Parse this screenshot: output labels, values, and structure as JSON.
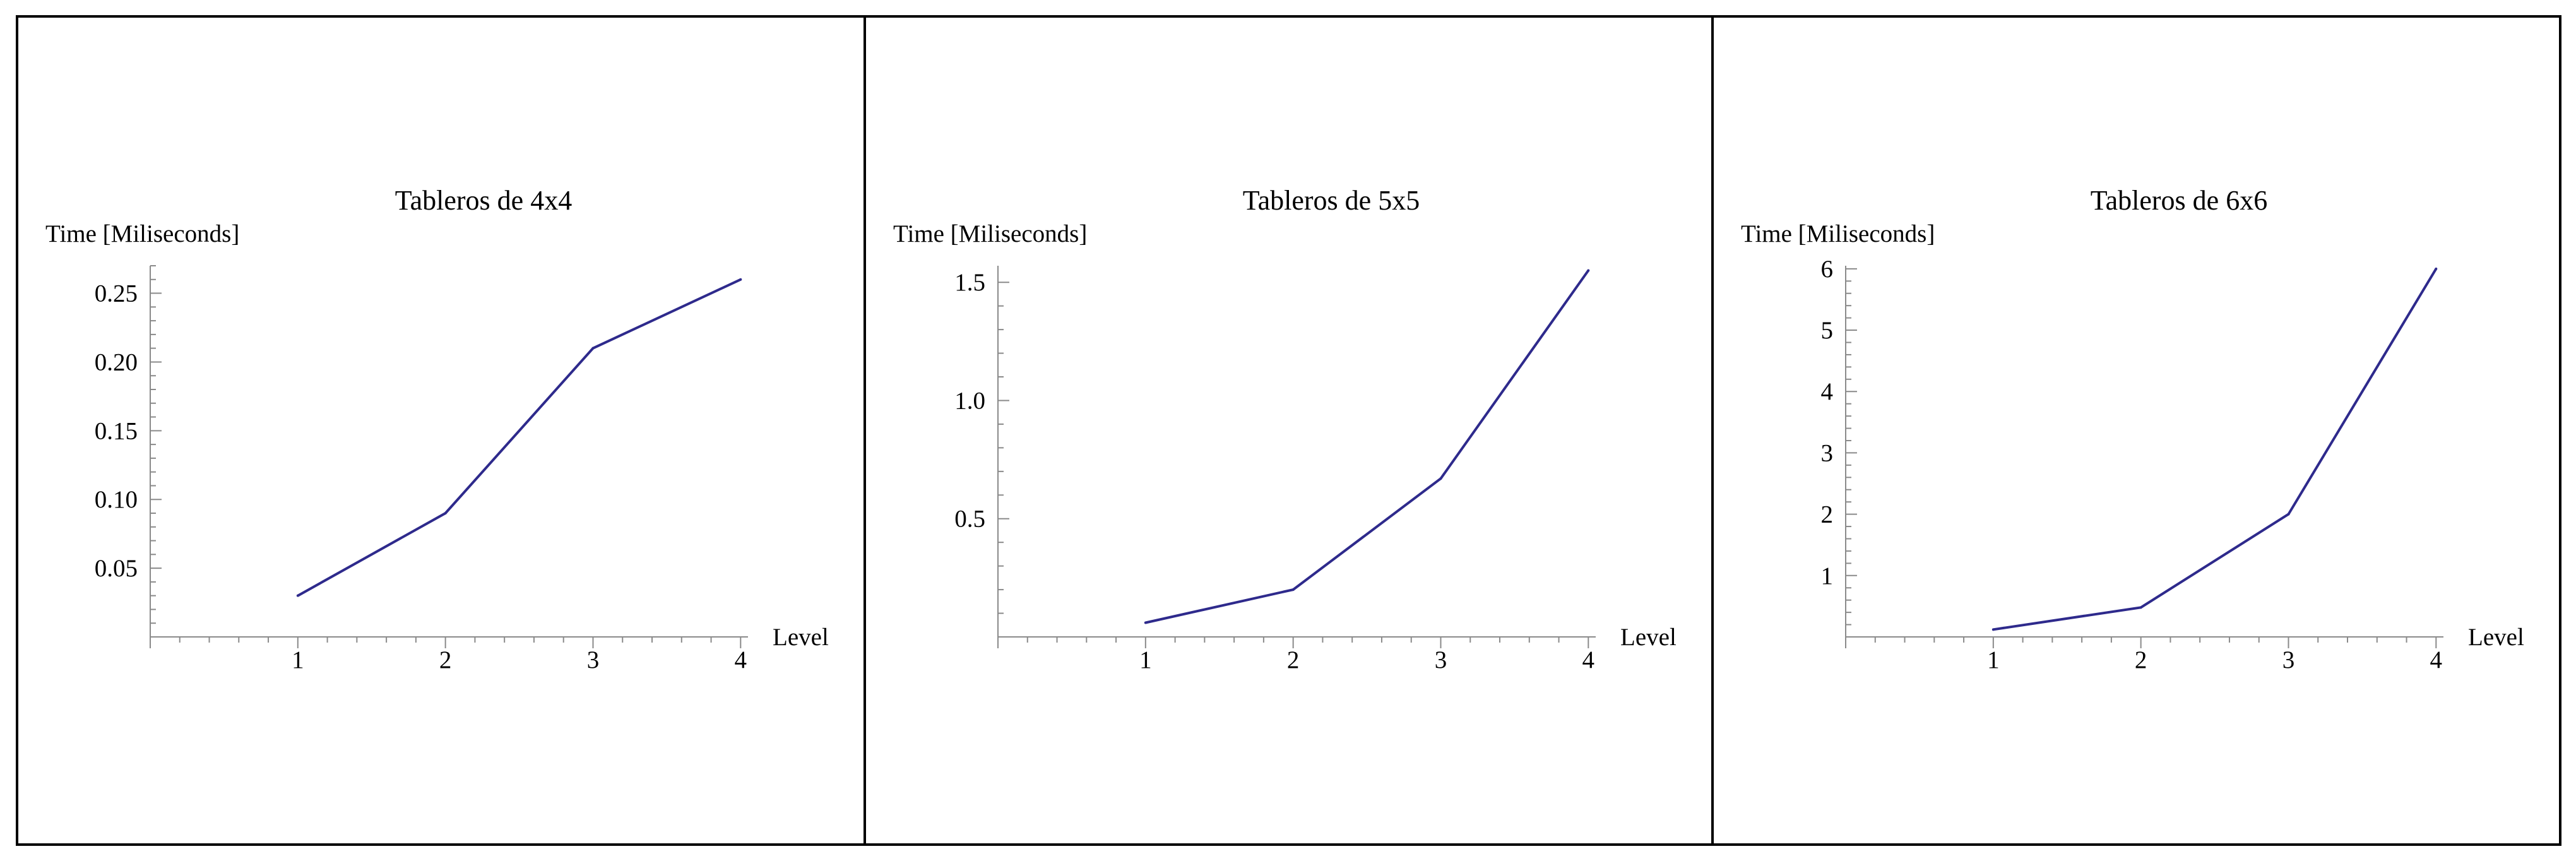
{
  "chart_data": [
    {
      "type": "line",
      "title": "Tableros de 4x4",
      "xlabel": "Level",
      "ylabel": "Time [Miliseconds]",
      "x": [
        1,
        2,
        3,
        4
      ],
      "series": [
        {
          "values": [
            0.03,
            0.09,
            0.21,
            0.26
          ]
        }
      ],
      "xlim": [
        0,
        4.05
      ],
      "ylim": [
        0,
        0.27
      ],
      "xticks": [
        1,
        2,
        3,
        4
      ],
      "xtick_labels": [
        "1",
        "2",
        "3",
        "4"
      ],
      "yticks": [
        0.05,
        0.1,
        0.15,
        0.2,
        0.25
      ],
      "ytick_labels": [
        "0.05",
        "0.10",
        "0.15",
        "0.20",
        "0.25"
      ],
      "x_minor_step": 0.2,
      "y_minor_step": 0.01,
      "grid": false,
      "color": "#2e2a8c"
    },
    {
      "type": "line",
      "title": "Tableros de 5x5",
      "xlabel": "Level",
      "ylabel": "Time [Miliseconds]",
      "x": [
        1,
        2,
        3,
        4
      ],
      "series": [
        {
          "values": [
            0.06,
            0.2,
            0.67,
            1.55
          ]
        }
      ],
      "xlim": [
        0,
        4.05
      ],
      "ylim": [
        0,
        1.57
      ],
      "xticks": [
        1,
        2,
        3,
        4
      ],
      "xtick_labels": [
        "1",
        "2",
        "3",
        "4"
      ],
      "yticks": [
        0.5,
        1.0,
        1.5
      ],
      "ytick_labels": [
        "0.5",
        "1.0",
        "1.5"
      ],
      "x_minor_step": 0.2,
      "y_minor_step": 0.1,
      "grid": false,
      "color": "#2e2a8c"
    },
    {
      "type": "line",
      "title": "Tableros de 6x6",
      "xlabel": "Level",
      "ylabel": "Time [Miliseconds]",
      "x": [
        1,
        2,
        3,
        4
      ],
      "series": [
        {
          "values": [
            0.12,
            0.48,
            2.0,
            6.0
          ]
        }
      ],
      "xlim": [
        0,
        4.05
      ],
      "ylim": [
        0,
        6.05
      ],
      "xticks": [
        1,
        2,
        3,
        4
      ],
      "xtick_labels": [
        "1",
        "2",
        "3",
        "4"
      ],
      "yticks": [
        1,
        2,
        3,
        4,
        5,
        6
      ],
      "ytick_labels": [
        "1",
        "2",
        "3",
        "4",
        "5",
        "6"
      ],
      "x_minor_step": 0.2,
      "y_minor_step": 0.2,
      "grid": false,
      "color": "#2e2a8c"
    }
  ]
}
